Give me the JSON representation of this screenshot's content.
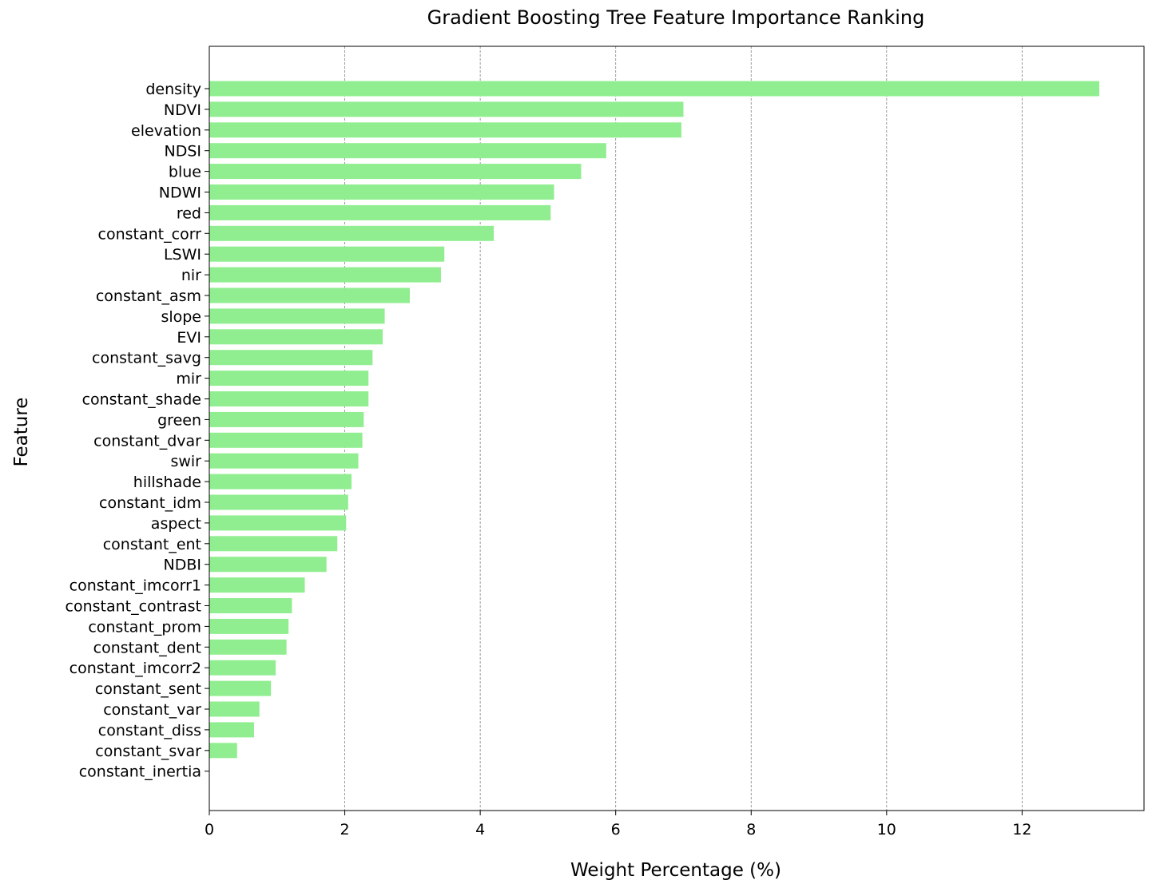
{
  "chart_data": {
    "type": "bar",
    "orientation": "horizontal",
    "title": "Gradient Boosting Tree Feature Importance Ranking",
    "xlabel": "Weight Percentage (%)",
    "ylabel": "Feature",
    "xlim": [
      0,
      13.8
    ],
    "xticks": [
      0,
      2,
      4,
      6,
      8,
      10,
      12
    ],
    "grid": "vertical dashed",
    "bar_color": "#90EE90",
    "categories": [
      "density",
      "NDVI",
      "elevation",
      "NDSI",
      "blue",
      "NDWI",
      "red",
      "constant_corr",
      "LSWI",
      "nir",
      "constant_asm",
      "slope",
      "EVI",
      "constant_savg",
      "mir",
      "constant_shade",
      "green",
      "constant_dvar",
      "swir",
      "hillshade",
      "constant_idm",
      "aspect",
      "constant_ent",
      "NDBI",
      "constant_imcorr1",
      "constant_contrast",
      "constant_prom",
      "constant_dent",
      "constant_imcorr2",
      "constant_sent",
      "constant_var",
      "constant_diss",
      "constant_svar",
      "constant_inertia"
    ],
    "values": [
      13.14,
      7.0,
      6.97,
      5.86,
      5.49,
      5.09,
      5.04,
      4.2,
      3.47,
      3.42,
      2.96,
      2.59,
      2.56,
      2.41,
      2.35,
      2.35,
      2.28,
      2.26,
      2.2,
      2.1,
      2.05,
      2.02,
      1.89,
      1.73,
      1.41,
      1.22,
      1.17,
      1.14,
      0.98,
      0.91,
      0.74,
      0.66,
      0.41,
      0.0
    ]
  }
}
